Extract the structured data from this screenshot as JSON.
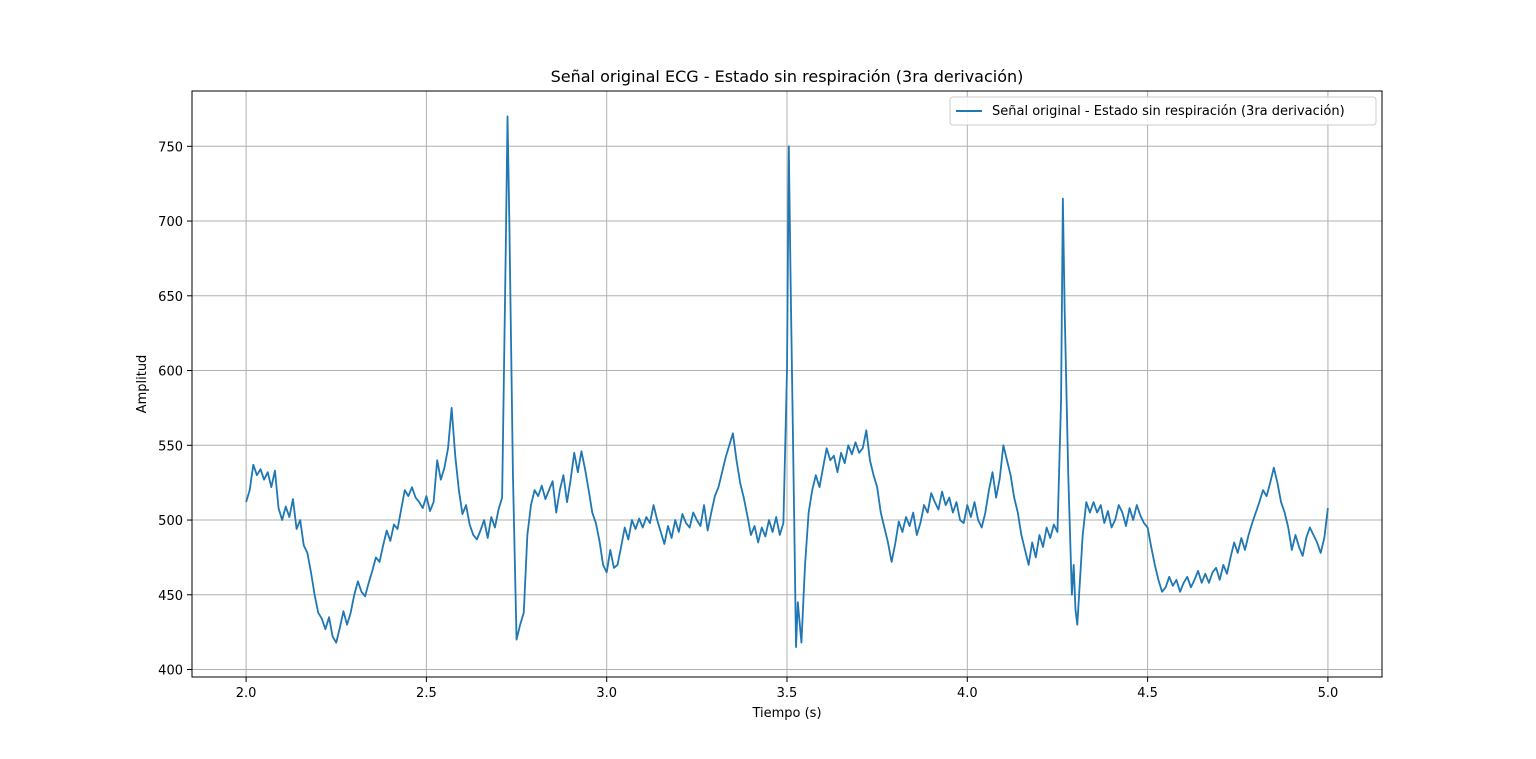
{
  "chart_data": {
    "type": "line",
    "title": "Señal original ECG - Estado sin respiración (3ra derivación)",
    "xlabel": "Tiempo (s)",
    "ylabel": "Amplitud",
    "xlim": [
      1.85,
      5.15
    ],
    "ylim": [
      395,
      787
    ],
    "xticks": [
      2.0,
      2.5,
      3.0,
      3.5,
      4.0,
      4.5,
      5.0
    ],
    "xtick_labels": [
      "2.0",
      "2.5",
      "3.0",
      "3.5",
      "4.0",
      "4.5",
      "5.0"
    ],
    "yticks": [
      400,
      450,
      500,
      550,
      600,
      650,
      700,
      750
    ],
    "ytick_labels": [
      "400",
      "450",
      "500",
      "550",
      "600",
      "650",
      "700",
      "750"
    ],
    "grid": true,
    "legend_position": "top-right",
    "series": [
      {
        "name": "Señal original - Estado sin respiración (3ra derivación)",
        "color": "#1f77b4",
        "points": [
          [
            2.0,
            512
          ],
          [
            2.01,
            520
          ],
          [
            2.02,
            537
          ],
          [
            2.03,
            530
          ],
          [
            2.04,
            534
          ],
          [
            2.05,
            527
          ],
          [
            2.06,
            532
          ],
          [
            2.07,
            522
          ],
          [
            2.08,
            533
          ],
          [
            2.09,
            508
          ],
          [
            2.1,
            500
          ],
          [
            2.11,
            509
          ],
          [
            2.12,
            502
          ],
          [
            2.13,
            514
          ],
          [
            2.14,
            494
          ],
          [
            2.15,
            500
          ],
          [
            2.16,
            483
          ],
          [
            2.17,
            478
          ],
          [
            2.18,
            465
          ],
          [
            2.19,
            450
          ],
          [
            2.2,
            438
          ],
          [
            2.21,
            434
          ],
          [
            2.22,
            427
          ],
          [
            2.23,
            435
          ],
          [
            2.24,
            422
          ],
          [
            2.25,
            418
          ],
          [
            2.26,
            428
          ],
          [
            2.27,
            439
          ],
          [
            2.28,
            430
          ],
          [
            2.29,
            438
          ],
          [
            2.3,
            450
          ],
          [
            2.31,
            459
          ],
          [
            2.32,
            452
          ],
          [
            2.33,
            449
          ],
          [
            2.34,
            458
          ],
          [
            2.35,
            466
          ],
          [
            2.36,
            475
          ],
          [
            2.37,
            472
          ],
          [
            2.38,
            483
          ],
          [
            2.39,
            493
          ],
          [
            2.4,
            486
          ],
          [
            2.41,
            497
          ],
          [
            2.42,
            494
          ],
          [
            2.43,
            507
          ],
          [
            2.44,
            520
          ],
          [
            2.45,
            516
          ],
          [
            2.46,
            522
          ],
          [
            2.47,
            515
          ],
          [
            2.48,
            512
          ],
          [
            2.49,
            508
          ],
          [
            2.5,
            516
          ],
          [
            2.51,
            506
          ],
          [
            2.52,
            512
          ],
          [
            2.53,
            540
          ],
          [
            2.54,
            527
          ],
          [
            2.55,
            535
          ],
          [
            2.56,
            548
          ],
          [
            2.57,
            575
          ],
          [
            2.58,
            543
          ],
          [
            2.59,
            520
          ],
          [
            2.6,
            504
          ],
          [
            2.61,
            510
          ],
          [
            2.62,
            497
          ],
          [
            2.63,
            490
          ],
          [
            2.64,
            487
          ],
          [
            2.65,
            493
          ],
          [
            2.66,
            500
          ],
          [
            2.67,
            488
          ],
          [
            2.68,
            502
          ],
          [
            2.69,
            495
          ],
          [
            2.7,
            507
          ],
          [
            2.71,
            515
          ],
          [
            2.72,
            680
          ],
          [
            2.725,
            770
          ],
          [
            2.73,
            700
          ],
          [
            2.74,
            530
          ],
          [
            2.75,
            420
          ],
          [
            2.76,
            430
          ],
          [
            2.77,
            438
          ],
          [
            2.78,
            490
          ],
          [
            2.79,
            510
          ],
          [
            2.8,
            520
          ],
          [
            2.81,
            516
          ],
          [
            2.82,
            523
          ],
          [
            2.83,
            514
          ],
          [
            2.84,
            520
          ],
          [
            2.85,
            526
          ],
          [
            2.86,
            505
          ],
          [
            2.87,
            520
          ],
          [
            2.88,
            530
          ],
          [
            2.89,
            512
          ],
          [
            2.9,
            527
          ],
          [
            2.91,
            545
          ],
          [
            2.92,
            532
          ],
          [
            2.93,
            546
          ],
          [
            2.94,
            534
          ],
          [
            2.95,
            520
          ],
          [
            2.96,
            505
          ],
          [
            2.97,
            498
          ],
          [
            2.98,
            486
          ],
          [
            2.99,
            470
          ],
          [
            3.0,
            465
          ],
          [
            3.01,
            480
          ],
          [
            3.02,
            468
          ],
          [
            3.03,
            470
          ],
          [
            3.04,
            482
          ],
          [
            3.05,
            495
          ],
          [
            3.06,
            487
          ],
          [
            3.07,
            500
          ],
          [
            3.08,
            494
          ],
          [
            3.09,
            501
          ],
          [
            3.1,
            495
          ],
          [
            3.11,
            502
          ],
          [
            3.12,
            498
          ],
          [
            3.13,
            510
          ],
          [
            3.14,
            500
          ],
          [
            3.15,
            492
          ],
          [
            3.16,
            484
          ],
          [
            3.17,
            496
          ],
          [
            3.18,
            488
          ],
          [
            3.19,
            500
          ],
          [
            3.2,
            492
          ],
          [
            3.21,
            504
          ],
          [
            3.22,
            498
          ],
          [
            3.23,
            495
          ],
          [
            3.24,
            505
          ],
          [
            3.25,
            500
          ],
          [
            3.26,
            496
          ],
          [
            3.27,
            510
          ],
          [
            3.28,
            493
          ],
          [
            3.29,
            505
          ],
          [
            3.3,
            516
          ],
          [
            3.31,
            522
          ],
          [
            3.32,
            532
          ],
          [
            3.33,
            542
          ],
          [
            3.34,
            550
          ],
          [
            3.35,
            558
          ],
          [
            3.36,
            540
          ],
          [
            3.37,
            525
          ],
          [
            3.38,
            515
          ],
          [
            3.39,
            503
          ],
          [
            3.4,
            490
          ],
          [
            3.41,
            496
          ],
          [
            3.42,
            485
          ],
          [
            3.43,
            495
          ],
          [
            3.44,
            489
          ],
          [
            3.45,
            500
          ],
          [
            3.46,
            492
          ],
          [
            3.47,
            502
          ],
          [
            3.48,
            490
          ],
          [
            3.49,
            498
          ],
          [
            3.5,
            600
          ],
          [
            3.505,
            750
          ],
          [
            3.51,
            660
          ],
          [
            3.52,
            500
          ],
          [
            3.525,
            415
          ],
          [
            3.53,
            445
          ],
          [
            3.54,
            418
          ],
          [
            3.55,
            470
          ],
          [
            3.56,
            505
          ],
          [
            3.57,
            520
          ],
          [
            3.58,
            530
          ],
          [
            3.59,
            522
          ],
          [
            3.6,
            535
          ],
          [
            3.61,
            548
          ],
          [
            3.62,
            540
          ],
          [
            3.63,
            543
          ],
          [
            3.64,
            532
          ],
          [
            3.65,
            545
          ],
          [
            3.66,
            538
          ],
          [
            3.67,
            550
          ],
          [
            3.68,
            544
          ],
          [
            3.69,
            552
          ],
          [
            3.7,
            545
          ],
          [
            3.71,
            548
          ],
          [
            3.72,
            560
          ],
          [
            3.73,
            540
          ],
          [
            3.74,
            530
          ],
          [
            3.75,
            522
          ],
          [
            3.76,
            505
          ],
          [
            3.77,
            495
          ],
          [
            3.78,
            485
          ],
          [
            3.79,
            472
          ],
          [
            3.8,
            484
          ],
          [
            3.81,
            499
          ],
          [
            3.82,
            492
          ],
          [
            3.83,
            502
          ],
          [
            3.84,
            496
          ],
          [
            3.85,
            505
          ],
          [
            3.86,
            490
          ],
          [
            3.87,
            498
          ],
          [
            3.88,
            510
          ],
          [
            3.89,
            505
          ],
          [
            3.9,
            518
          ],
          [
            3.91,
            512
          ],
          [
            3.92,
            507
          ],
          [
            3.93,
            519
          ],
          [
            3.94,
            510
          ],
          [
            3.95,
            515
          ],
          [
            3.96,
            505
          ],
          [
            3.97,
            512
          ],
          [
            3.98,
            500
          ],
          [
            3.99,
            498
          ],
          [
            4.0,
            510
          ],
          [
            4.01,
            502
          ],
          [
            4.02,
            512
          ],
          [
            4.03,
            500
          ],
          [
            4.04,
            495
          ],
          [
            4.05,
            505
          ],
          [
            4.06,
            520
          ],
          [
            4.07,
            532
          ],
          [
            4.08,
            515
          ],
          [
            4.09,
            528
          ],
          [
            4.1,
            550
          ],
          [
            4.11,
            540
          ],
          [
            4.12,
            530
          ],
          [
            4.13,
            515
          ],
          [
            4.14,
            505
          ],
          [
            4.15,
            490
          ],
          [
            4.16,
            480
          ],
          [
            4.17,
            470
          ],
          [
            4.18,
            485
          ],
          [
            4.19,
            475
          ],
          [
            4.2,
            490
          ],
          [
            4.21,
            482
          ],
          [
            4.22,
            495
          ],
          [
            4.23,
            488
          ],
          [
            4.24,
            497
          ],
          [
            4.25,
            492
          ],
          [
            4.26,
            580
          ],
          [
            4.265,
            715
          ],
          [
            4.27,
            640
          ],
          [
            4.28,
            530
          ],
          [
            4.29,
            450
          ],
          [
            4.295,
            470
          ],
          [
            4.3,
            440
          ],
          [
            4.305,
            430
          ],
          [
            4.31,
            450
          ],
          [
            4.32,
            490
          ],
          [
            4.33,
            512
          ],
          [
            4.34,
            505
          ],
          [
            4.35,
            512
          ],
          [
            4.36,
            505
          ],
          [
            4.37,
            510
          ],
          [
            4.38,
            498
          ],
          [
            4.39,
            506
          ],
          [
            4.4,
            495
          ],
          [
            4.41,
            500
          ],
          [
            4.42,
            510
          ],
          [
            4.43,
            505
          ],
          [
            4.44,
            496
          ],
          [
            4.45,
            508
          ],
          [
            4.46,
            500
          ],
          [
            4.47,
            510
          ],
          [
            4.48,
            503
          ],
          [
            4.49,
            498
          ],
          [
            4.5,
            495
          ],
          [
            4.51,
            482
          ],
          [
            4.52,
            470
          ],
          [
            4.53,
            460
          ],
          [
            4.54,
            452
          ],
          [
            4.55,
            455
          ],
          [
            4.56,
            462
          ],
          [
            4.57,
            456
          ],
          [
            4.58,
            460
          ],
          [
            4.59,
            452
          ],
          [
            4.6,
            458
          ],
          [
            4.61,
            462
          ],
          [
            4.62,
            455
          ],
          [
            4.63,
            460
          ],
          [
            4.64,
            466
          ],
          [
            4.65,
            458
          ],
          [
            4.66,
            464
          ],
          [
            4.67,
            458
          ],
          [
            4.68,
            465
          ],
          [
            4.69,
            468
          ],
          [
            4.7,
            460
          ],
          [
            4.71,
            470
          ],
          [
            4.72,
            464
          ],
          [
            4.73,
            475
          ],
          [
            4.74,
            485
          ],
          [
            4.75,
            478
          ],
          [
            4.76,
            488
          ],
          [
            4.77,
            480
          ],
          [
            4.78,
            490
          ],
          [
            4.79,
            498
          ],
          [
            4.8,
            505
          ],
          [
            4.81,
            512
          ],
          [
            4.82,
            520
          ],
          [
            4.83,
            516
          ],
          [
            4.84,
            525
          ],
          [
            4.85,
            535
          ],
          [
            4.86,
            525
          ],
          [
            4.87,
            512
          ],
          [
            4.88,
            505
          ],
          [
            4.89,
            495
          ],
          [
            4.9,
            480
          ],
          [
            4.91,
            490
          ],
          [
            4.92,
            482
          ],
          [
            4.93,
            476
          ],
          [
            4.94,
            488
          ],
          [
            4.95,
            495
          ],
          [
            4.96,
            490
          ],
          [
            4.97,
            485
          ],
          [
            4.98,
            478
          ],
          [
            4.99,
            488
          ],
          [
            5.0,
            508
          ]
        ]
      }
    ]
  }
}
